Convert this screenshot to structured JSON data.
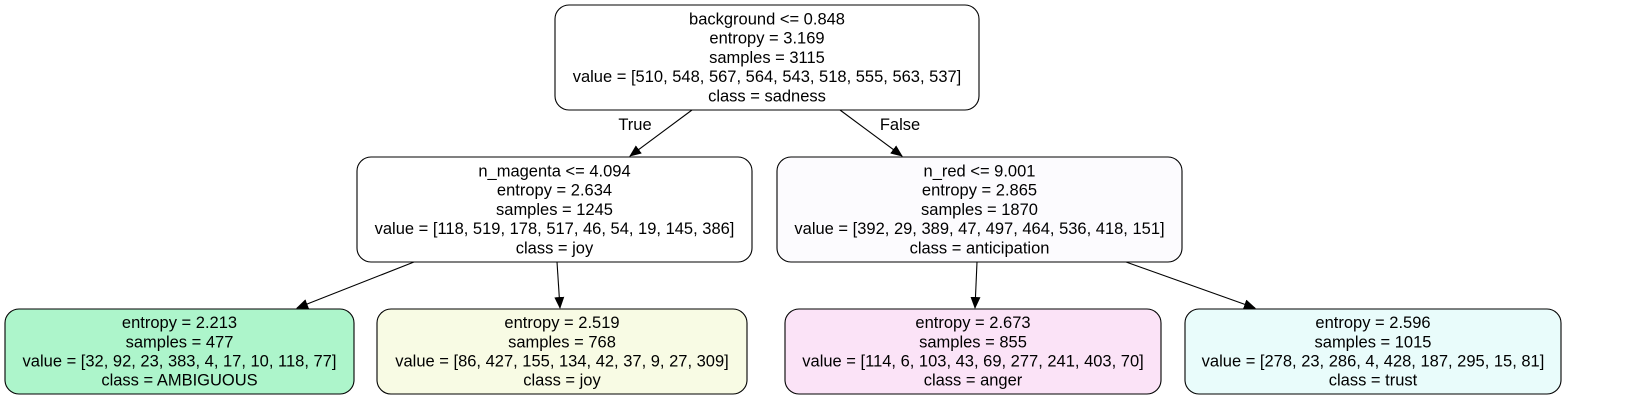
{
  "tree": {
    "nodes": [
      {
        "id": "root",
        "fill": "#ffffff",
        "lines": [
          "background <= 0.848",
          "entropy = 3.169",
          "samples = 3115",
          "value = [510, 548, 567, 564, 543, 518, 555, 563, 537]",
          "class = sadness"
        ]
      },
      {
        "id": "left",
        "fill": "#ffffff",
        "lines": [
          "n_magenta <= 4.094",
          "entropy = 2.634",
          "samples = 1245",
          "value = [118, 519, 178, 517, 46, 54, 19, 145, 386]",
          "class = joy"
        ]
      },
      {
        "id": "right",
        "fill": "#fcfbfe",
        "lines": [
          "n_red <= 9.001",
          "entropy = 2.865",
          "samples = 1870",
          "value = [392, 29, 389, 47, 497, 464, 536, 418, 151]",
          "class = anticipation"
        ]
      },
      {
        "id": "leaf-1",
        "fill": "#adf5cb",
        "lines": [
          "entropy = 2.213",
          "samples = 477",
          "value = [32, 92, 23, 383, 4, 17, 10, 118, 77]",
          "class = AMBIGUOUS"
        ]
      },
      {
        "id": "leaf-2",
        "fill": "#f8fbe4",
        "lines": [
          "entropy = 2.519",
          "samples = 768",
          "value = [86, 427, 155, 134, 42, 37, 9, 27, 309]",
          "class = joy"
        ]
      },
      {
        "id": "leaf-3",
        "fill": "#fbe3f7",
        "lines": [
          "entropy = 2.673",
          "samples = 855",
          "value = [114, 6, 103, 43, 69, 277, 241, 403, 70]",
          "class = anger"
        ]
      },
      {
        "id": "leaf-4",
        "fill": "#e9fcfb",
        "lines": [
          "entropy = 2.596",
          "samples = 1015",
          "value = [278, 23, 286, 4, 428, 187, 295, 15, 81]",
          "class = trust"
        ]
      }
    ],
    "edges": [
      {
        "from": "root",
        "to": "left",
        "label": "True"
      },
      {
        "from": "root",
        "to": "right",
        "label": "False"
      },
      {
        "from": "left",
        "to": "leaf-1",
        "label": ""
      },
      {
        "from": "left",
        "to": "leaf-2",
        "label": ""
      },
      {
        "from": "right",
        "to": "leaf-3",
        "label": ""
      },
      {
        "from": "right",
        "to": "leaf-4",
        "label": ""
      }
    ]
  }
}
